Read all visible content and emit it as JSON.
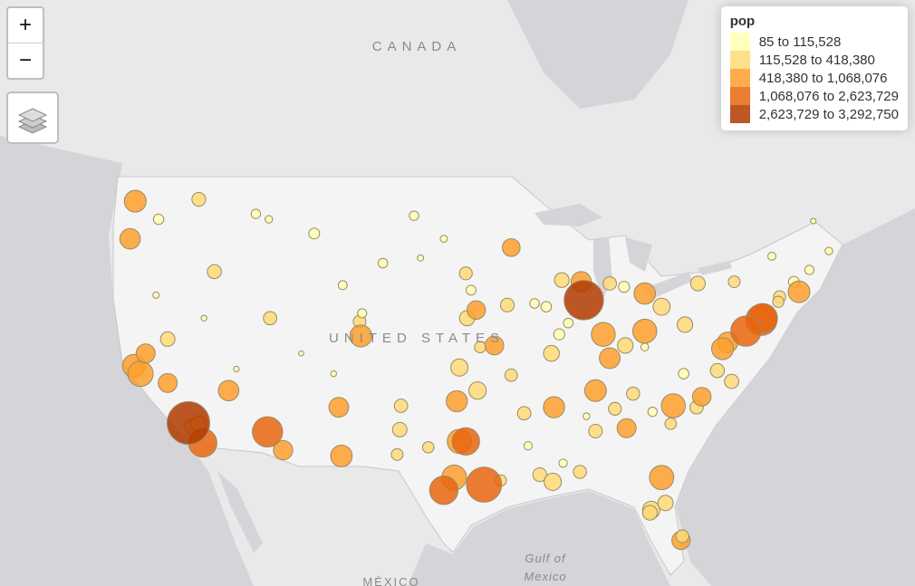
{
  "zoom": {
    "in": "+",
    "out": "−"
  },
  "map_labels": {
    "canada": "CANADA",
    "usa": "UNITED STATES",
    "gulf": [
      "Gulf of",
      "Mexico"
    ],
    "mexico": "MÉXICO"
  },
  "legend": {
    "title": "pop",
    "breaks": [
      85,
      115528,
      418380,
      1068076,
      2623729,
      3292750
    ],
    "items": [
      {
        "label": "85 to 115,528",
        "color": "#ffffb2"
      },
      {
        "label": "115,528 to 418,380",
        "color": "#fed976"
      },
      {
        "label": "418,380 to 1,068,076",
        "color": "#fd9f2c"
      },
      {
        "label": "1,068,076 to 2,623,729",
        "color": "#e8650e"
      },
      {
        "label": "2,623,729 to 3,292,750",
        "color": "#b13a00"
      }
    ]
  },
  "markers": {
    "lon": [
      -100.8,
      -103.2,
      -108.5,
      -116.2,
      -117.4,
      -119.8,
      -120.5,
      -101.8,
      -101.9,
      -97.3,
      -95.7,
      -92.3,
      -91.1,
      -88.0,
      -89.4,
      -93.6,
      -96.7,
      -84.6,
      -85.7,
      -77.4,
      -76.3,
      -79.0,
      -82.4,
      -81.0,
      -83.9,
      -85.3,
      -89.6,
      -105.0,
      -106.3,
      -104.8,
      -112.0,
      -98.5,
      -96.8,
      -100.3,
      -107.0,
      -109.5,
      -114.5,
      -117.0,
      -120.7,
      -102.1,
      -99.7,
      -94.1,
      -92.0,
      -89.3,
      -87.5,
      -93.3,
      -91.5,
      -90.6,
      -88.9,
      -96.4,
      -83.0,
      -80.0,
      -68.8,
      -70.3,
      -72.6,
      -70.0,
      -73.2,
      -71.5,
      -113.0,
      -122.4,
      -121.9,
      -122.3,
      -122.7,
      -121.5,
      -119.8,
      -117.9,
      -117.4,
      -115.1,
      -111.9,
      -104.9,
      -106.6,
      -110.9,
      -97.7,
      -97.3,
      -106.4,
      -93.3,
      -90.2,
      -94.6,
      -96.0,
      -97.5,
      -95.9,
      -86.2,
      -83.0,
      -84.5,
      -81.7,
      -83.0,
      -87.9,
      -85.7,
      -86.8,
      -90.0,
      -84.4,
      -90.1,
      -86.8,
      -80.8,
      -78.6,
      -81.7,
      -82.5,
      -81.4,
      -80.2,
      -80.1,
      -82.6,
      -76.6,
      -77.0,
      -71.1,
      -79.9,
      -78.9,
      -76.1,
      -72.7,
      -74.0,
      -73.9,
      -75.2,
      -96.8,
      -98.5,
      -117.1,
      -112.1,
      -95.4,
      -87.7,
      -118.2
    ],
    "lat": [
      46.8,
      44.1,
      45.8,
      43.6,
      47.7,
      39.5,
      46.6,
      35.2,
      33.6,
      37.7,
      39.0,
      34.7,
      30.5,
      30.7,
      43.1,
      41.6,
      40.8,
      42.7,
      42.9,
      37.5,
      36.8,
      35.1,
      34.8,
      34.0,
      36.0,
      35.0,
      39.8,
      40.6,
      42.8,
      41.1,
      46.6,
      45.5,
      43.5,
      44.4,
      37.3,
      38.6,
      37.6,
      40.8,
      42.2,
      31.9,
      32.4,
      30.1,
      32.5,
      31.3,
      34.5,
      37.2,
      41.7,
      41.5,
      40.5,
      42.5,
      39.0,
      37.3,
      44.8,
      43.7,
      42.1,
      46.5,
      44.5,
      43.0,
      46.9,
      37.8,
      37.3,
      47.6,
      45.5,
      38.6,
      36.7,
      33.8,
      34.0,
      36.2,
      40.8,
      39.7,
      35.1,
      32.2,
      30.3,
      32.8,
      31.8,
      45.0,
      38.6,
      39.1,
      41.3,
      35.5,
      36.2,
      39.8,
      40.0,
      39.1,
      41.5,
      42.3,
      43.0,
      38.3,
      36.2,
      35.1,
      33.7,
      30.0,
      33.5,
      35.2,
      35.8,
      30.3,
      28.0,
      28.5,
      25.8,
      26.1,
      27.8,
      39.3,
      38.9,
      42.4,
      40.4,
      42.9,
      43.0,
      41.8,
      40.7,
      40.8,
      40.0,
      32.8,
      29.4,
      32.7,
      33.45,
      29.8,
      41.9,
      34.05
    ],
    "pop": [
      70000,
      75000,
      110000,
      230000,
      220000,
      250000,
      95000,
      200000,
      250000,
      390000,
      125000,
      200000,
      220000,
      190000,
      260000,
      215000,
      290000,
      115000,
      200000,
      230000,
      240000,
      200000,
      70000,
      130000,
      190000,
      180000,
      115000,
      170000,
      60000,
      64000,
      32000,
      26000,
      180000,
      14000,
      10000,
      5000,
      8000,
      9000,
      15000,
      140000,
      125000,
      120000,
      48000,
      46000,
      20000,
      165000,
      75000,
      100000,
      77000,
      82000,
      35000,
      100000,
      33000,
      67000,
      155000,
      8000,
      42000,
      110000,
      70000,
      800000,
      1000000,
      700000,
      600000,
      500000,
      500000,
      300000,
      320000,
      600000,
      200000,
      700000,
      550000,
      520000,
      950000,
      900000,
      680000,
      420000,
      320000,
      480000,
      470000,
      650000,
      400000,
      870000,
      880000,
      300000,
      380000,
      670000,
      590000,
      620000,
      690000,
      650000,
      500000,
      390000,
      210000,
      880000,
      470000,
      900000,
      400000,
      290000,
      460000,
      180000,
      260000,
      600000,
      700000,
      690000,
      300000,
      260000,
      140000,
      120000,
      1600000,
      1400000,
      1500000,
      1200000,
      1300000,
      1300000,
      1500000,
      2100000,
      2700000,
      3200000
    ]
  }
}
